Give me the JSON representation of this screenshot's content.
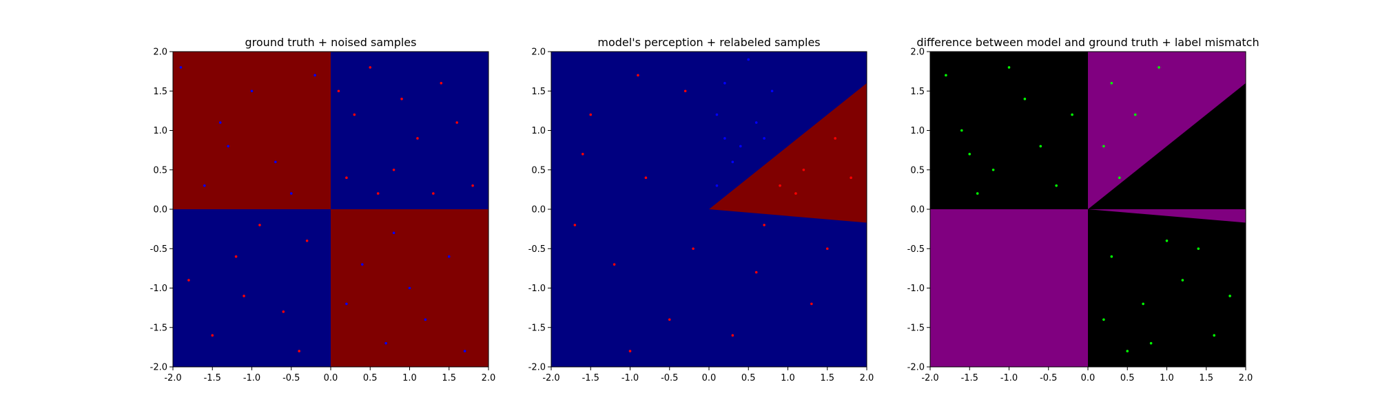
{
  "chart_data": [
    {
      "type": "scatter",
      "title": "ground truth + noised samples",
      "xlabel": "",
      "ylabel": "",
      "xlim": [
        -2.0,
        2.0
      ],
      "ylim": [
        -2.0,
        2.0
      ],
      "ticks": [
        "-2.0",
        "-1.5",
        "-1.0",
        "-0.5",
        "0.0",
        "0.5",
        "1.0",
        "1.5",
        "2.0"
      ],
      "grid": false,
      "regions": [
        {
          "color": "#800000",
          "points": [
            [
              -2,
              0
            ],
            [
              0,
              0
            ],
            [
              0,
              2
            ],
            [
              -2,
              2
            ]
          ]
        },
        {
          "color": "#000080",
          "points": [
            [
              0,
              0
            ],
            [
              2,
              0
            ],
            [
              2,
              2
            ],
            [
              0,
              2
            ]
          ]
        },
        {
          "color": "#000080",
          "points": [
            [
              -2,
              -2
            ],
            [
              0,
              -2
            ],
            [
              0,
              0
            ],
            [
              -2,
              0
            ]
          ]
        },
        {
          "color": "#800000",
          "points": [
            [
              0,
              -2
            ],
            [
              2,
              -2
            ],
            [
              2,
              0
            ],
            [
              0,
              0
            ]
          ]
        }
      ],
      "series": [
        {
          "color": "#ff0000",
          "values": [
            [
              0.3,
              1.2
            ],
            [
              0.8,
              0.5
            ],
            [
              1.4,
              1.6
            ],
            [
              0.5,
              1.8
            ],
            [
              1.1,
              0.9
            ],
            [
              1.8,
              0.3
            ],
            [
              0.2,
              0.4
            ],
            [
              0.9,
              1.4
            ],
            [
              1.6,
              1.1
            ],
            [
              0.6,
              0.2
            ],
            [
              -1.2,
              -0.6
            ],
            [
              -0.6,
              -1.3
            ],
            [
              -1.5,
              -1.6
            ],
            [
              -0.3,
              -0.4
            ],
            [
              -0.9,
              -0.2
            ],
            [
              -1.8,
              -0.9
            ],
            [
              -0.4,
              -1.8
            ],
            [
              -1.1,
              -1.1
            ],
            [
              0.1,
              1.5
            ],
            [
              1.3,
              0.2
            ]
          ]
        },
        {
          "color": "#0000ff",
          "values": [
            [
              -1.4,
              1.1
            ],
            [
              -0.7,
              0.6
            ],
            [
              -1.6,
              0.3
            ],
            [
              -0.2,
              1.7
            ],
            [
              -1.0,
              1.5
            ],
            [
              -0.5,
              0.2
            ],
            [
              -1.9,
              1.8
            ],
            [
              0.4,
              -0.7
            ],
            [
              1.2,
              -1.4
            ],
            [
              0.8,
              -0.3
            ],
            [
              1.7,
              -1.8
            ],
            [
              0.2,
              -1.2
            ],
            [
              1.5,
              -0.6
            ],
            [
              0.7,
              -1.7
            ],
            [
              -1.3,
              0.8
            ],
            [
              1.0,
              -1.0
            ]
          ]
        }
      ]
    },
    {
      "type": "scatter",
      "title": "model's perception + relabeled samples",
      "xlabel": "",
      "ylabel": "",
      "xlim": [
        -2.0,
        2.0
      ],
      "ylim": [
        -2.0,
        2.0
      ],
      "ticks": [
        "-2.0",
        "-1.5",
        "-1.0",
        "-0.5",
        "0.0",
        "0.5",
        "1.0",
        "1.5",
        "2.0"
      ],
      "grid": false,
      "regions": [
        {
          "color": "#000080",
          "points": [
            [
              -2,
              -2
            ],
            [
              2,
              -2
            ],
            [
              2,
              2
            ],
            [
              -2,
              2
            ]
          ]
        },
        {
          "color": "#800000",
          "points": [
            [
              0,
              0
            ],
            [
              2,
              1.6
            ],
            [
              2,
              -0.17
            ]
          ]
        }
      ],
      "series": [
        {
          "color": "#ff0000",
          "values": [
            [
              -1.5,
              1.2
            ],
            [
              -0.8,
              0.4
            ],
            [
              -0.3,
              1.5
            ],
            [
              -1.2,
              -0.7
            ],
            [
              -0.5,
              -1.4
            ],
            [
              0.6,
              -0.8
            ],
            [
              1.3,
              -1.2
            ],
            [
              -1.7,
              -0.2
            ],
            [
              1.2,
              0.5
            ],
            [
              1.6,
              0.9
            ],
            [
              0.9,
              0.3
            ],
            [
              1.8,
              0.4
            ],
            [
              -0.9,
              1.7
            ],
            [
              0.3,
              -1.6
            ],
            [
              1.5,
              -0.5
            ],
            [
              -1.0,
              -1.8
            ],
            [
              0.7,
              -0.2
            ],
            [
              -0.2,
              -0.5
            ],
            [
              1.1,
              0.2
            ],
            [
              -1.6,
              0.7
            ]
          ]
        },
        {
          "color": "#0000ff",
          "values": [
            [
              0.1,
              1.2
            ],
            [
              0.4,
              0.8
            ],
            [
              0.2,
              1.6
            ],
            [
              0.6,
              1.1
            ],
            [
              0.3,
              0.6
            ],
            [
              0.8,
              1.5
            ],
            [
              0.1,
              0.3
            ],
            [
              0.5,
              1.9
            ],
            [
              0.7,
              0.9
            ],
            [
              0.2,
              0.9
            ]
          ]
        }
      ]
    },
    {
      "type": "scatter",
      "title": "difference between model and ground truth + label mismatch",
      "xlabel": "",
      "ylabel": "",
      "xlim": [
        -2.0,
        2.0
      ],
      "ylim": [
        -2.0,
        2.0
      ],
      "ticks": [
        "-2.0",
        "-1.5",
        "-1.0",
        "-0.5",
        "0.0",
        "0.5",
        "1.0",
        "1.5",
        "2.0"
      ],
      "grid": false,
      "regions": [
        {
          "color": "#000000",
          "points": [
            [
              -2,
              -2
            ],
            [
              2,
              -2
            ],
            [
              2,
              2
            ],
            [
              -2,
              2
            ]
          ]
        },
        {
          "color": "#800080",
          "points": [
            [
              0,
              0
            ],
            [
              0,
              2
            ],
            [
              2,
              2
            ],
            [
              2,
              1.6
            ]
          ]
        },
        {
          "color": "#800080",
          "points": [
            [
              -2,
              -2
            ],
            [
              0,
              -2
            ],
            [
              0,
              0
            ],
            [
              -2,
              0
            ]
          ]
        },
        {
          "color": "#800080",
          "points": [
            [
              0,
              0
            ],
            [
              2,
              -0.17
            ],
            [
              2,
              0
            ]
          ]
        }
      ],
      "series": [
        {
          "color": "#00ff00",
          "values": [
            [
              -1.6,
              1.0
            ],
            [
              -1.2,
              0.5
            ],
            [
              -0.8,
              1.4
            ],
            [
              -0.4,
              0.3
            ],
            [
              -1.8,
              1.7
            ],
            [
              -0.6,
              0.8
            ],
            [
              -1.4,
              0.2
            ],
            [
              -0.2,
              1.2
            ],
            [
              -1.0,
              1.8
            ],
            [
              -1.5,
              0.7
            ],
            [
              0.3,
              1.6
            ],
            [
              0.6,
              1.2
            ],
            [
              0.2,
              0.8
            ],
            [
              0.9,
              1.8
            ],
            [
              0.4,
              0.4
            ],
            [
              0.3,
              -0.6
            ],
            [
              0.7,
              -1.2
            ],
            [
              1.2,
              -0.9
            ],
            [
              1.6,
              -1.6
            ],
            [
              0.5,
              -1.8
            ],
            [
              1.0,
              -0.4
            ],
            [
              1.8,
              -1.1
            ],
            [
              0.2,
              -1.4
            ],
            [
              1.4,
              -0.5
            ],
            [
              0.8,
              -1.7
            ]
          ]
        }
      ]
    }
  ]
}
